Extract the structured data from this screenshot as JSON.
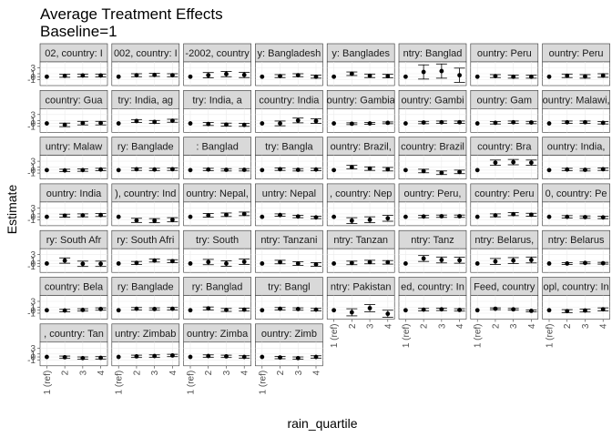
{
  "chart_data": {
    "type": "scatter",
    "title": "Average Treatment Effects",
    "subtitle": "Baseline=1",
    "xlabel": "rain_quartile",
    "ylabel": "Estimate",
    "categories": [
      "1 (ref)",
      "2",
      "3",
      "4"
    ],
    "y_ticks": [
      "-1",
      "0",
      "1",
      "3"
    ],
    "ylim": [
      -3,
      5
    ],
    "grid": true,
    "legend": "none",
    "panels": [
      {
        "label": "02, country: I",
        "est": [
          0,
          0.3,
          0.4,
          0.4
        ],
        "err": [
          0,
          0.5,
          0.5,
          0.5
        ]
      },
      {
        "label": "002, country: I",
        "est": [
          0,
          0.5,
          0.6,
          0.5
        ],
        "err": [
          0,
          0.5,
          0.5,
          0.5
        ]
      },
      {
        "label": "-2002, country",
        "est": [
          0,
          0.5,
          0.9,
          0.6
        ],
        "err": [
          0,
          0.9,
          0.9,
          0.9
        ]
      },
      {
        "label": "y: Bangladesh",
        "est": [
          0,
          0.2,
          0.5,
          0.0
        ],
        "err": [
          0,
          0.5,
          0.5,
          0.5
        ]
      },
      {
        "label": "y: Banglades",
        "est": [
          0,
          1.0,
          0.3,
          0.2
        ],
        "err": [
          0,
          0.6,
          0.6,
          0.6
        ]
      },
      {
        "label": "ntry: Banglad",
        "est": [
          0,
          1.6,
          1.9,
          0.5
        ],
        "err": [
          0,
          2.4,
          2.4,
          2.4
        ]
      },
      {
        "label": "ountry: Peru",
        "est": [
          0,
          0.2,
          0.0,
          0.0
        ],
        "err": [
          0,
          0.5,
          0.5,
          0.5
        ]
      },
      {
        "label": "ountry: Peru",
        "est": [
          0,
          0.3,
          0.1,
          0.4
        ],
        "err": [
          0,
          0.6,
          0.6,
          0.6
        ]
      },
      {
        "label": "country: Gua",
        "est": [
          0,
          -0.5,
          0.1,
          0.1
        ],
        "err": [
          0,
          0.6,
          0.6,
          0.6
        ]
      },
      {
        "label": "try: India, ag",
        "est": [
          0,
          0.8,
          0.5,
          0.9
        ],
        "err": [
          0,
          0.5,
          0.5,
          0.5
        ]
      },
      {
        "label": "try: India, a",
        "est": [
          0,
          -0.2,
          -0.4,
          -0.5
        ],
        "err": [
          0,
          0.5,
          0.5,
          0.5
        ]
      },
      {
        "label": "country: India",
        "est": [
          0,
          0.0,
          1.0,
          0.8
        ],
        "err": [
          0,
          0.8,
          0.8,
          0.8
        ]
      },
      {
        "label": "ountry: Gambia",
        "est": [
          0,
          -0.1,
          0.0,
          0.2
        ],
        "err": [
          0,
          0.3,
          0.3,
          0.3
        ]
      },
      {
        "label": "ountry: Gambi",
        "est": [
          0,
          0.3,
          0.4,
          0.4
        ],
        "err": [
          0,
          0.4,
          0.4,
          0.4
        ]
      },
      {
        "label": "ountry: Gam",
        "est": [
          0,
          0.2,
          0.4,
          0.3
        ],
        "err": [
          0,
          0.4,
          0.4,
          0.4
        ]
      },
      {
        "label": "ountry: Malawi,",
        "est": [
          0,
          0.4,
          0.4,
          0.2
        ],
        "err": [
          0,
          0.4,
          0.4,
          0.4
        ]
      },
      {
        "label": "untry: Malaw",
        "est": [
          0,
          -0.1,
          0.0,
          0.2
        ],
        "err": [
          0,
          0.4,
          0.4,
          0.4
        ]
      },
      {
        "label": "ry: Banglade",
        "est": [
          0,
          0.3,
          0.2,
          0.3
        ],
        "err": [
          0,
          0.4,
          0.4,
          0.4
        ]
      },
      {
        "label": ": Banglad",
        "est": [
          0,
          0.2,
          0.1,
          0.1
        ],
        "err": [
          0,
          0.4,
          0.4,
          0.4
        ]
      },
      {
        "label": "try: Bangla",
        "est": [
          0,
          0.3,
          0.1,
          0.2
        ],
        "err": [
          0,
          0.4,
          0.4,
          0.4
        ]
      },
      {
        "label": "ountry: Brazil,",
        "est": [
          0,
          1.0,
          0.5,
          0.3
        ],
        "err": [
          0,
          0.6,
          0.6,
          0.6
        ]
      },
      {
        "label": "country: Brazil",
        "est": [
          0,
          -0.3,
          -0.9,
          -0.6
        ],
        "err": [
          0,
          0.6,
          0.6,
          0.6
        ]
      },
      {
        "label": "country: Bra",
        "est": [
          0,
          2.5,
          2.7,
          2.5
        ],
        "err": [
          0,
          0.9,
          0.9,
          0.9
        ]
      },
      {
        "label": "ountry: India,",
        "est": [
          0,
          0.2,
          0.1,
          0.3
        ],
        "err": [
          0,
          0.4,
          0.4,
          0.4
        ]
      },
      {
        "label": "ountry: India",
        "est": [
          0,
          0.4,
          0.5,
          0.6
        ],
        "err": [
          0,
          0.5,
          0.5,
          0.5
        ]
      },
      {
        "label": "), country: Ind",
        "est": [
          0,
          -1.2,
          -1.3,
          -1.0
        ],
        "err": [
          0,
          0.7,
          0.7,
          0.7
        ]
      },
      {
        "label": "ountry: Nepal,",
        "est": [
          0,
          0.5,
          0.7,
          1.0
        ],
        "err": [
          0,
          0.6,
          0.6,
          0.6
        ]
      },
      {
        "label": "untry: Nepal",
        "est": [
          0,
          0.6,
          0.1,
          -0.2
        ],
        "err": [
          0,
          0.4,
          0.4,
          0.4
        ]
      },
      {
        "label": ", country: Nep",
        "est": [
          0,
          -1.3,
          -1.0,
          -0.5
        ],
        "err": [
          0,
          1.0,
          1.0,
          1.0
        ]
      },
      {
        "label": "ountry: Peru,",
        "est": [
          0,
          0.1,
          0.2,
          0.2
        ],
        "err": [
          0,
          0.4,
          0.4,
          0.4
        ]
      },
      {
        "label": "country: Peru",
        "est": [
          0,
          0.5,
          0.9,
          0.7
        ],
        "err": [
          0,
          0.5,
          0.5,
          0.5
        ]
      },
      {
        "label": "0, country: Pe",
        "est": [
          0,
          0.0,
          -0.1,
          -0.2
        ],
        "err": [
          0,
          0.4,
          0.4,
          0.4
        ]
      },
      {
        "label": "ry: South Afr",
        "est": [
          0,
          1.0,
          -0.1,
          -0.1
        ],
        "err": [
          0,
          0.9,
          0.9,
          0.9
        ]
      },
      {
        "label": "ry: South Afri",
        "est": [
          0,
          0.2,
          1.0,
          0.8
        ],
        "err": [
          0,
          0.5,
          0.5,
          0.5
        ]
      },
      {
        "label": "try: South",
        "est": [
          0,
          0.5,
          0.0,
          0.6
        ],
        "err": [
          0,
          0.9,
          0.9,
          0.9
        ]
      },
      {
        "label": "ntry: Tanzani",
        "est": [
          0,
          0.5,
          0.0,
          -0.3
        ],
        "err": [
          0,
          0.6,
          0.6,
          0.6
        ]
      },
      {
        "label": "ntry: Tanzan",
        "est": [
          0,
          0.2,
          0.5,
          0.4
        ],
        "err": [
          0,
          0.6,
          0.6,
          0.6
        ]
      },
      {
        "label": "ntry: Tanz",
        "est": [
          0,
          1.7,
          1.2,
          1.1
        ],
        "err": [
          0,
          1.0,
          1.0,
          1.0
        ]
      },
      {
        "label": "ntry: Belarus,",
        "est": [
          0,
          0.7,
          1.0,
          1.2
        ],
        "err": [
          0,
          1.0,
          1.0,
          1.0
        ]
      },
      {
        "label": "ntry: Belarus",
        "est": [
          0,
          0.0,
          0.2,
          0.1
        ],
        "err": [
          0,
          0.3,
          0.3,
          0.3
        ]
      },
      {
        "label": "country: Bela",
        "est": [
          0,
          -0.1,
          0.1,
          0.4
        ],
        "err": [
          0,
          0.4,
          0.4,
          0.4
        ]
      },
      {
        "label": "ry: Banglade",
        "est": [
          0,
          0.5,
          0.4,
          0.5
        ],
        "err": [
          0,
          0.4,
          0.4,
          0.4
        ]
      },
      {
        "label": "ry: Banglad",
        "est": [
          0,
          0.6,
          0.1,
          0.2
        ],
        "err": [
          0,
          0.5,
          0.5,
          0.5
        ]
      },
      {
        "label": "try: Bangl",
        "est": [
          0,
          0.5,
          0.4,
          0.2
        ],
        "err": [
          0,
          0.4,
          0.4,
          0.4
        ]
      },
      {
        "label": "ntry: Pakistan",
        "est": [
          0,
          -0.7,
          0.7,
          -1.2
        ],
        "err": [
          0,
          1.2,
          1.2,
          1.2
        ]
      },
      {
        "label": "ed, country: In",
        "est": [
          0,
          0.2,
          0.3,
          0.1
        ],
        "err": [
          0,
          0.4,
          0.4,
          0.4
        ]
      },
      {
        "label": "Feed, country",
        "est": [
          0,
          0.5,
          0.3,
          -0.2
        ],
        "err": [
          0,
          0.3,
          0.3,
          0.3
        ]
      },
      {
        "label": "opl, country: In",
        "est": [
          0,
          -0.3,
          -0.1,
          0.3
        ],
        "err": [
          0,
          0.5,
          0.5,
          0.5
        ]
      },
      {
        "label": ", country: Tan",
        "est": [
          0,
          -0.1,
          -0.4,
          -0.3
        ],
        "err": [
          0,
          0.4,
          0.4,
          0.4
        ]
      },
      {
        "label": "untry: Zimbab",
        "est": [
          0,
          0.2,
          0.3,
          0.5
        ],
        "err": [
          0,
          0.4,
          0.4,
          0.4
        ]
      },
      {
        "label": "ountry: Zimba",
        "est": [
          0,
          0.3,
          0.2,
          0.0
        ],
        "err": [
          0,
          0.4,
          0.4,
          0.4
        ]
      },
      {
        "label": "ountry: Zimb",
        "est": [
          0,
          -0.2,
          -0.4,
          0.0
        ],
        "err": [
          0,
          0.4,
          0.4,
          0.4
        ]
      }
    ]
  }
}
